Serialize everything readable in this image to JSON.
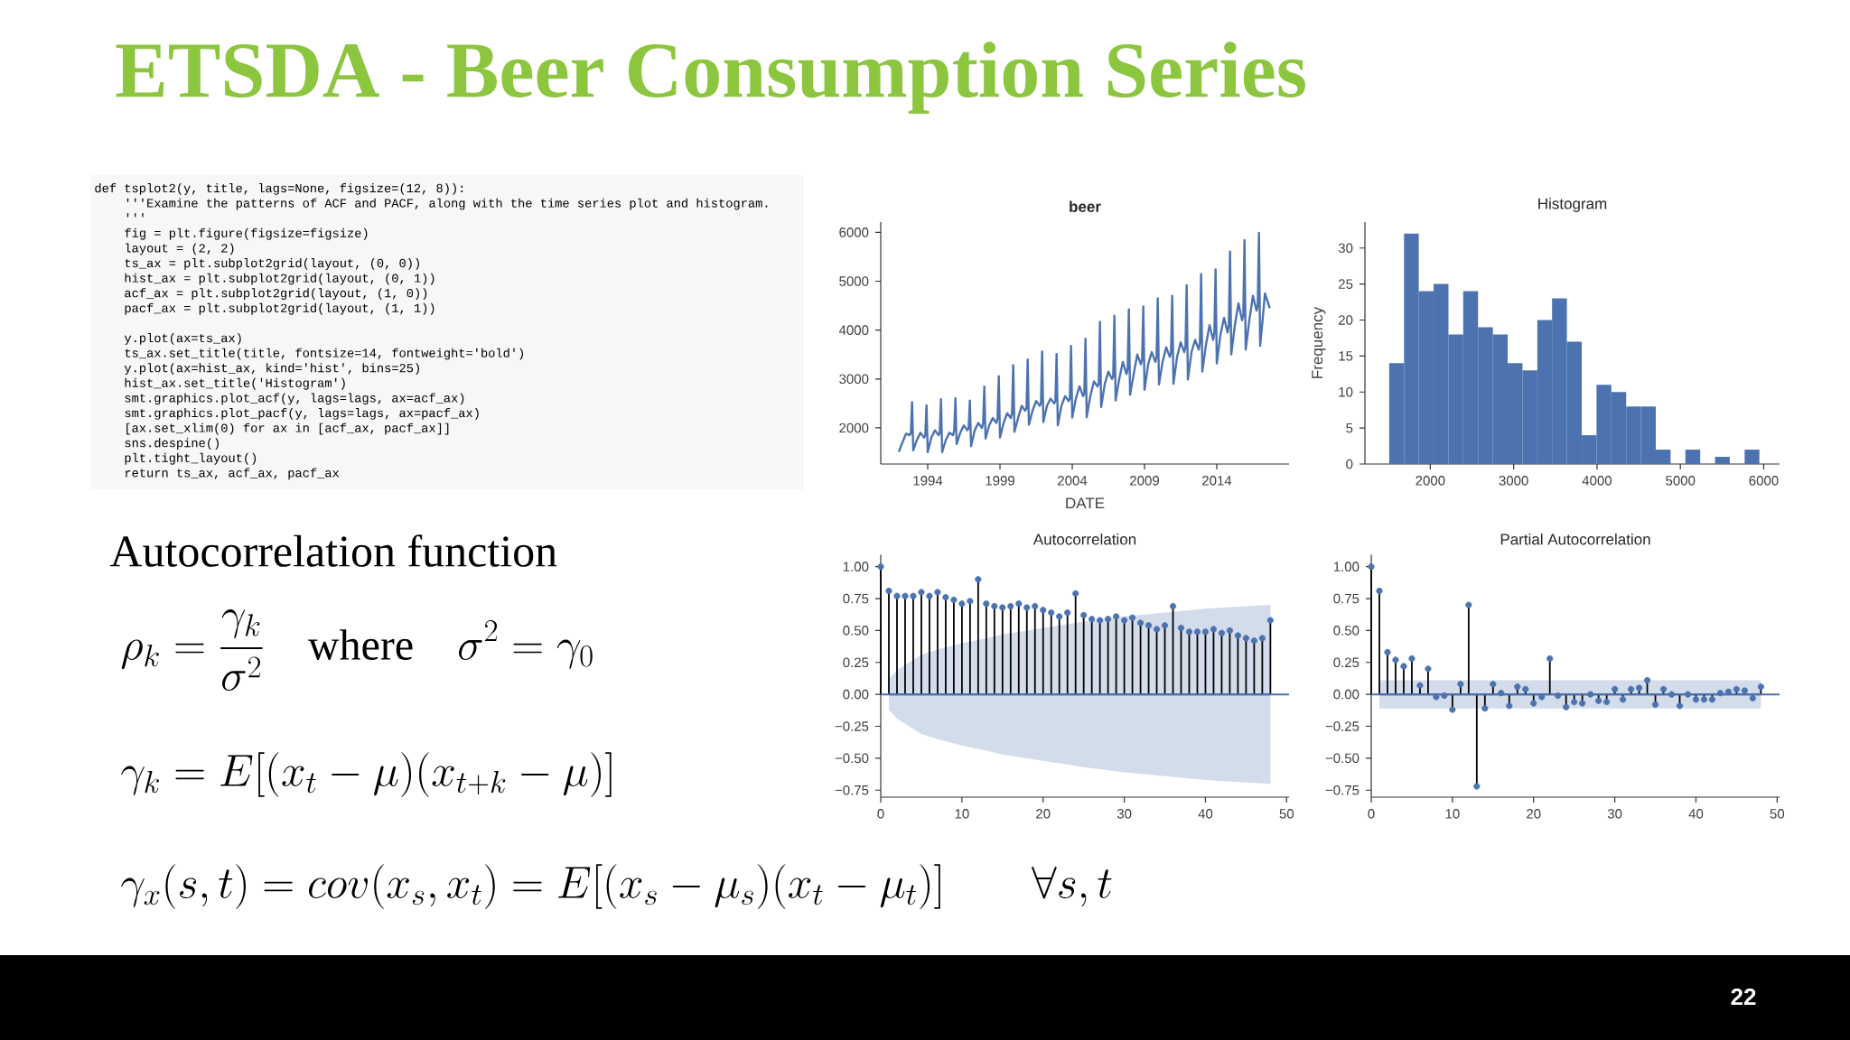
{
  "chart_data": [
    {
      "type": "other",
      "title": "ETSDA - Beer Consumption Series",
      "annotations": [
        "def tsplot2(y, title, lags=None, figsize=(12, 8)):",
        "'''Examine the patterns of ACF and PACF, along with the time series plot and histogram.",
        "'''",
        "fig = plt.figure(figsize=figsize)",
        "layout = (2, 2)",
        "ts_ax   = plt.subplot2grid(layout, (0, 0))",
        "hist_ax = plt.subplot2grid(layout, (0, 1))",
        "acf_ax  = plt.subplot2grid(layout, (1, 0))",
        "pacf_ax = plt.subplot2grid(layout, (1, 1))",
        "y.plot(ax=ts_ax)",
        "ts_ax.set_title(title, fontsize=14, fontweight='bold')",
        "y.plot(ax=hist_ax, kind='hist', bins=25)",
        "hist_ax.set_title('Histogram')",
        "smt.graphics.plot_acf(y, lags=lags, ax=acf_ax)",
        "smt.graphics.plot_pacf(y, lags=lags, ax=pacf_ax)",
        "[ax.set_xlim(0) for ax in [acf_ax, pacf_ax]]",
        "sns.despine()",
        "plt.tight_layout()",
        "return ts_ax, acf_ax, pacf_ax",
        "Autocorrelation function",
        "\\rho_k = \\frac{\\gamma_k}{\\sigma^2} \\quad \\mathrm{where} \\quad \\sigma^2 = \\gamma_0",
        "\\gamma_k = E[(x_t - \\mu)(x_{t+k} - \\mu)]",
        "\\gamma_x(s,t) = cov(x_s, x_t) = E[(x_s - \\mu_s)(x_t - \\mu_t)] \\qquad \\forall s,t",
        "22"
      ]
    },
    {
      "type": "line",
      "title": "beer",
      "xlabel": "DATE",
      "color": "#4c72b0",
      "x": [
        "1992-01",
        "1992-04",
        "1992-07",
        "1992-10",
        "1992-11",
        "1992-12",
        "1993-01",
        "1993-04",
        "1993-07",
        "1993-10",
        "1993-11",
        "1993-12",
        "1994-01",
        "1994-04",
        "1994-07",
        "1994-10",
        "1994-11",
        "1994-12",
        "1995-01",
        "1995-04",
        "1995-07",
        "1995-10",
        "1995-11",
        "1995-12",
        "1996-01",
        "1996-04",
        "1996-07",
        "1996-10",
        "1996-11",
        "1996-12",
        "1997-01",
        "1997-04",
        "1997-07",
        "1997-10",
        "1997-11",
        "1997-12",
        "1998-01",
        "1998-04",
        "1998-07",
        "1998-10",
        "1998-11",
        "1998-12",
        "1999-01",
        "1999-04",
        "1999-07",
        "1999-10",
        "1999-11",
        "1999-12",
        "2000-01",
        "2000-04",
        "2000-07",
        "2000-10",
        "2000-11",
        "2000-12",
        "2001-01",
        "2001-04",
        "2001-07",
        "2001-10",
        "2001-11",
        "2001-12",
        "2002-01",
        "2002-04",
        "2002-07",
        "2002-10",
        "2002-11",
        "2002-12",
        "2003-01",
        "2003-04",
        "2003-07",
        "2003-10",
        "2003-11",
        "2003-12",
        "2004-01",
        "2004-04",
        "2004-07",
        "2004-10",
        "2004-11",
        "2004-12",
        "2005-01",
        "2005-04",
        "2005-07",
        "2005-10",
        "2005-11",
        "2005-12",
        "2006-01",
        "2006-04",
        "2006-07",
        "2006-10",
        "2006-11",
        "2006-12",
        "2007-01",
        "2007-04",
        "2007-07",
        "2007-10",
        "2007-11",
        "2007-12",
        "2008-01",
        "2008-04",
        "2008-07",
        "2008-10",
        "2008-11",
        "2008-12",
        "2009-01",
        "2009-04",
        "2009-07",
        "2009-10",
        "2009-11",
        "2009-12",
        "2010-01",
        "2010-04",
        "2010-07",
        "2010-10",
        "2010-11",
        "2010-12",
        "2011-01",
        "2011-04",
        "2011-07",
        "2011-10",
        "2011-11",
        "2011-12",
        "2012-01",
        "2012-04",
        "2012-07",
        "2012-10",
        "2012-11",
        "2012-12",
        "2013-01",
        "2013-04",
        "2013-07",
        "2013-10",
        "2013-11",
        "2013-12",
        "2014-01",
        "2014-04",
        "2014-07",
        "2014-10",
        "2014-11",
        "2014-12",
        "2015-01",
        "2015-04",
        "2015-07",
        "2015-10",
        "2015-11",
        "2015-12",
        "2016-01",
        "2016-04",
        "2016-07",
        "2016-10",
        "2016-11",
        "2016-12",
        "2017-01",
        "2017-03",
        "2017-05",
        "2017-07",
        "2017-09"
      ],
      "values": [
        1510,
        1700,
        1880,
        1850,
        1900,
        2527,
        1539,
        1750,
        1900,
        1800,
        1850,
        2461,
        1506,
        1800,
        1950,
        1850,
        1900,
        2587,
        1506,
        1750,
        1900,
        1850,
        1950,
        2606,
        1670,
        1900,
        2050,
        1950,
        2000,
        2560,
        1624,
        1950,
        2100,
        2000,
        2100,
        2844,
        1782,
        2050,
        2200,
        2100,
        2200,
        3055,
        1802,
        2100,
        2300,
        2200,
        2300,
        3285,
        1921,
        2200,
        2450,
        2350,
        2400,
        3398,
        2066,
        2350,
        2550,
        2450,
        2500,
        3562,
        2119,
        2450,
        2600,
        2500,
        2550,
        3510,
        2053,
        2450,
        2650,
        2550,
        2600,
        3674,
        2211,
        2600,
        2850,
        2650,
        2700,
        3826,
        2218,
        2650,
        2950,
        2850,
        2900,
        4169,
        2429,
        2900,
        3150,
        3000,
        3050,
        4294,
        2560,
        3000,
        3350,
        3100,
        3200,
        4426,
        2679,
        3100,
        3500,
        3300,
        3400,
        4485,
        2778,
        3300,
        3550,
        3350,
        3450,
        4650,
        2890,
        3350,
        3650,
        3450,
        3550,
        4703,
        2903,
        3450,
        3750,
        3550,
        3650,
        4920,
        2989,
        3550,
        3800,
        3600,
        3750,
        5151,
        3154,
        3700,
        4100,
        3800,
        3950,
        5243,
        3318,
        3900,
        4250,
        3950,
        4100,
        5606,
        3503,
        4100,
        4550,
        4200,
        4300,
        5843,
        3602,
        4200,
        4700,
        4400,
        4500,
        5988,
        3681,
        4200,
        4750,
        4600,
        4450
      ],
      "xlim": [
        "1990-10",
        "2019-01"
      ],
      "xticks": [
        "1994",
        "1999",
        "2004",
        "2009",
        "2014"
      ],
      "ylim": [
        1260,
        6210
      ],
      "yticks": [
        2000,
        3000,
        4000,
        5000,
        6000
      ]
    },
    {
      "type": "histogram",
      "title": "Histogram",
      "ylabel": "Frequency",
      "color": "#4c72b0",
      "bins": [
        1507,
        1685,
        1862,
        2040,
        2218,
        2395,
        2573,
        2751,
        2928,
        3106,
        3284,
        3461,
        3639,
        3817,
        3994,
        4172,
        4350,
        4527,
        4705,
        4883,
        5060,
        5238,
        5416,
        5593,
        5771,
        5948
      ],
      "values": [
        14,
        32,
        24,
        25,
        18,
        24,
        19,
        18,
        14,
        13,
        20,
        23,
        17,
        4,
        11,
        10,
        8,
        8,
        2,
        0,
        2,
        0,
        1,
        0,
        2
      ],
      "xlim": [
        1216,
        6190
      ],
      "xticks": [
        2000,
        3000,
        4000,
        5000,
        6000
      ],
      "ylim": [
        0,
        33.6
      ],
      "yticks": [
        0,
        5,
        10,
        15,
        20,
        25,
        30
      ]
    },
    {
      "type": "lollipop",
      "title": "Autocorrelation",
      "marker": "circle",
      "x": [
        0,
        1,
        2,
        3,
        4,
        5,
        6,
        7,
        8,
        9,
        10,
        11,
        12,
        13,
        14,
        15,
        16,
        17,
        18,
        19,
        20,
        21,
        22,
        23,
        24,
        25,
        26,
        27,
        28,
        29,
        30,
        31,
        32,
        33,
        34,
        35,
        36,
        37,
        38,
        39,
        40,
        41,
        42,
        43,
        44,
        45,
        46,
        47,
        48
      ],
      "series": [
        {
          "type": "line",
          "marker": "none",
          "color": "#4c72b0",
          "x": [
            1,
            2,
            3,
            5,
            7,
            10,
            13,
            15,
            20,
            25,
            30,
            35,
            40,
            45,
            48
          ],
          "values": [
            0,
            0,
            0,
            0,
            0,
            0,
            0,
            0,
            0,
            0,
            0,
            0,
            0,
            0,
            0
          ],
          "upper": [
            0.12,
            0.19,
            0.23,
            0.31,
            0.35,
            0.4,
            0.44,
            0.47,
            0.52,
            0.57,
            0.61,
            0.64,
            0.67,
            0.69,
            0.7
          ],
          "lower": [
            -0.12,
            -0.19,
            -0.23,
            -0.31,
            -0.35,
            -0.4,
            -0.44,
            -0.47,
            -0.52,
            -0.57,
            -0.61,
            -0.64,
            -0.67,
            -0.69,
            -0.7
          ]
        },
        {
          "color": "#4c72b0",
          "values": [
            1.0,
            0.81,
            0.77,
            0.77,
            0.77,
            0.8,
            0.77,
            0.8,
            0.76,
            0.74,
            0.71,
            0.73,
            0.9,
            0.71,
            0.69,
            0.68,
            0.69,
            0.71,
            0.68,
            0.69,
            0.66,
            0.64,
            0.61,
            0.64,
            0.79,
            0.62,
            0.59,
            0.58,
            0.59,
            0.61,
            0.58,
            0.6,
            0.56,
            0.54,
            0.51,
            0.54,
            0.69,
            0.52,
            0.49,
            0.49,
            0.49,
            0.51,
            0.48,
            0.5,
            0.46,
            0.44,
            0.42,
            0.44,
            0.58
          ]
        }
      ],
      "ref_lines": [
        {
          "axis": "y",
          "value": 0,
          "color": "#4c72b0"
        }
      ],
      "xlim": [
        0,
        50.3
      ],
      "xticks": [
        0,
        10,
        20,
        30,
        40,
        50
      ],
      "ylim": [
        -0.805,
        1.093
      ],
      "yticks": [
        {
          "value": -0.75,
          "label": "−0.75"
        },
        {
          "value": -0.5,
          "label": "−0.50"
        },
        {
          "value": -0.25,
          "label": "−0.25"
        },
        {
          "value": 0,
          "label": "0.00"
        },
        {
          "value": 0.25,
          "label": "0.25"
        },
        {
          "value": 0.5,
          "label": "0.50"
        },
        {
          "value": 0.75,
          "label": "0.75"
        },
        {
          "value": 1,
          "label": "1.00"
        }
      ]
    },
    {
      "type": "lollipop",
      "title": "Partial Autocorrelation",
      "marker": "circle",
      "x": [
        0,
        1,
        2,
        3,
        4,
        5,
        6,
        7,
        8,
        9,
        10,
        11,
        12,
        13,
        14,
        15,
        16,
        17,
        18,
        19,
        20,
        21,
        22,
        23,
        24,
        25,
        26,
        27,
        28,
        29,
        30,
        31,
        32,
        33,
        34,
        35,
        36,
        37,
        38,
        39,
        40,
        41,
        42,
        43,
        44,
        45,
        46,
        47,
        48
      ],
      "series": [
        {
          "type": "line",
          "marker": "none",
          "color": "#4c72b0",
          "x": [
            1,
            48
          ],
          "values": [
            0,
            0
          ],
          "upper": [
            0.11,
            0.11
          ],
          "lower": [
            -0.11,
            -0.11
          ]
        },
        {
          "color": "#4c72b0",
          "values": [
            1.0,
            0.81,
            0.33,
            0.27,
            0.22,
            0.28,
            0.07,
            0.2,
            -0.02,
            -0.01,
            -0.12,
            0.08,
            0.7,
            -0.72,
            -0.11,
            0.08,
            0.01,
            -0.09,
            0.06,
            0.04,
            -0.07,
            -0.02,
            0.28,
            -0.01,
            -0.1,
            -0.06,
            -0.07,
            0.0,
            -0.05,
            -0.06,
            0.04,
            -0.04,
            0.04,
            0.05,
            0.11,
            -0.08,
            0.04,
            0.0,
            -0.09,
            0.0,
            -0.04,
            -0.04,
            -0.04,
            0.01,
            0.02,
            0.04,
            0.03,
            -0.03,
            0.06
          ]
        }
      ],
      "ref_lines": [
        {
          "axis": "y",
          "value": 0,
          "color": "#4c72b0"
        }
      ],
      "xlim": [
        0,
        50.3
      ],
      "xticks": [
        0,
        10,
        20,
        30,
        40,
        50
      ],
      "ylim": [
        -0.805,
        1.093
      ],
      "yticks": [
        {
          "value": -0.75,
          "label": "−0.75"
        },
        {
          "value": -0.5,
          "label": "−0.50"
        },
        {
          "value": -0.25,
          "label": "−0.25"
        },
        {
          "value": 0,
          "label": "0.00"
        },
        {
          "value": 0.25,
          "label": "0.25"
        },
        {
          "value": 0.5,
          "label": "0.50"
        },
        {
          "value": 0.75,
          "label": "0.75"
        },
        {
          "value": 1,
          "label": "1.00"
        }
      ]
    }
  ]
}
